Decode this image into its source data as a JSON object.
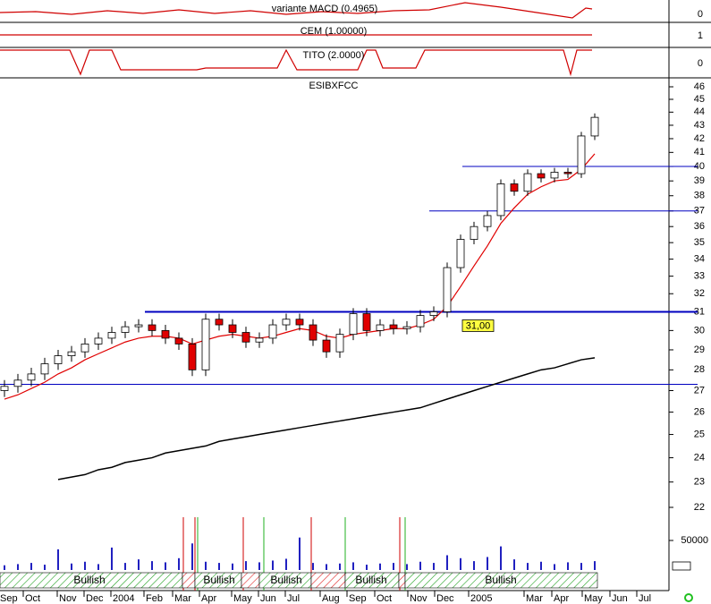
{
  "chart_data": {
    "type": "candlestick",
    "title": "ESIBXFCC",
    "indicators": [
      {
        "name": "variante MACD (0.4965)",
        "axis_label": "0"
      },
      {
        "name": "CEM (1.00000)",
        "axis_label": "1"
      },
      {
        "name": "TITO (2.0000)",
        "axis_label": "0"
      }
    ],
    "log_scale": true,
    "ylim": [
      22,
      46
    ],
    "yticks": [
      22,
      23,
      24,
      25,
      26,
      27,
      28,
      29,
      30,
      31,
      32,
      33,
      34,
      35,
      36,
      37,
      38,
      39,
      40,
      41,
      42,
      43,
      44,
      45,
      46
    ],
    "xtick_labels": [
      "Sep",
      "Oct",
      "Nov",
      "Dec",
      "2004",
      "Feb",
      "Mar",
      "Apr",
      "May",
      "Jun",
      "Jul",
      "Aug",
      "Sep",
      "Oct",
      "Nov",
      "Dec",
      "2005",
      "Mar",
      "Apr",
      "May",
      "Jun",
      "Jul"
    ],
    "open": [
      27.0,
      27.2,
      27.5,
      27.8,
      28.3,
      28.7,
      28.9,
      29.3,
      29.6,
      29.9,
      30.2,
      30.3,
      30.0,
      29.6,
      29.3,
      28.0,
      30.6,
      30.3,
      29.9,
      29.4,
      29.6,
      30.3,
      30.6,
      30.3,
      29.5,
      28.9,
      29.8,
      30.9,
      30.0,
      30.3,
      30.1,
      30.2,
      30.8,
      31.0,
      33.5,
      35.2,
      36.0,
      36.7,
      38.8,
      38.3,
      39.5,
      39.2,
      39.6,
      39.5,
      42.2
    ],
    "high": [
      27.5,
      27.8,
      28.1,
      28.6,
      29.0,
      29.2,
      29.6,
      29.9,
      30.2,
      30.5,
      30.6,
      30.6,
      30.3,
      29.9,
      29.6,
      30.9,
      30.9,
      30.6,
      30.2,
      29.9,
      30.6,
      30.9,
      30.9,
      30.6,
      29.8,
      30.1,
      31.2,
      31.2,
      30.6,
      30.6,
      30.5,
      31.1,
      31.3,
      33.8,
      35.5,
      36.3,
      37.0,
      39.1,
      39.1,
      39.8,
      39.8,
      39.9,
      39.9,
      42.5,
      43.9
    ],
    "low": [
      26.7,
      26.9,
      27.2,
      27.5,
      28.0,
      28.4,
      28.6,
      29.0,
      29.3,
      29.6,
      29.9,
      29.7,
      29.3,
      29.0,
      27.7,
      27.7,
      30.0,
      29.6,
      29.1,
      29.1,
      29.3,
      30.0,
      30.0,
      29.2,
      28.6,
      28.6,
      29.5,
      29.7,
      29.7,
      29.8,
      29.8,
      29.9,
      30.5,
      30.7,
      33.2,
      34.9,
      35.7,
      36.4,
      38.0,
      38.0,
      38.9,
      38.9,
      39.2,
      39.2,
      41.9
    ],
    "close": [
      27.2,
      27.5,
      27.8,
      28.3,
      28.7,
      28.9,
      29.3,
      29.6,
      29.9,
      30.2,
      30.3,
      30.0,
      29.6,
      29.3,
      28.0,
      30.6,
      30.3,
      29.9,
      29.4,
      29.6,
      30.3,
      30.6,
      30.3,
      29.5,
      28.9,
      29.8,
      30.9,
      30.0,
      30.3,
      30.1,
      30.2,
      30.8,
      31.0,
      33.5,
      35.2,
      36.0,
      36.7,
      38.8,
      38.3,
      39.5,
      39.2,
      39.6,
      39.5,
      42.2,
      43.6
    ],
    "up_color": "#ffffff",
    "down_color": "#e00000",
    "moving_averages": [
      {
        "color": "#e00000",
        "values": [
          26.6,
          26.8,
          27.1,
          27.4,
          27.8,
          28.1,
          28.5,
          28.8,
          29.1,
          29.4,
          29.6,
          29.7,
          29.7,
          29.6,
          29.3,
          29.5,
          29.7,
          29.8,
          29.7,
          29.6,
          29.7,
          29.9,
          30.1,
          30.0,
          29.7,
          29.6,
          29.8,
          29.9,
          30.0,
          30.1,
          30.1,
          30.3,
          30.6,
          31.3,
          32.4,
          33.6,
          34.8,
          36.2,
          37.2,
          38.1,
          38.6,
          39.0,
          39.1,
          39.8,
          40.9
        ]
      },
      {
        "color": "#000000",
        "values": [
          null,
          null,
          null,
          null,
          23.1,
          23.2,
          23.3,
          23.5,
          23.6,
          23.8,
          23.9,
          24.0,
          24.2,
          24.3,
          24.4,
          24.5,
          24.7,
          24.8,
          24.9,
          25.0,
          25.1,
          25.2,
          25.3,
          25.4,
          25.5,
          25.6,
          25.7,
          25.8,
          25.9,
          26.0,
          26.1,
          26.2,
          26.4,
          26.6,
          26.8,
          27.0,
          27.2,
          27.4,
          27.6,
          27.8,
          28.0,
          28.1,
          28.3,
          28.5,
          28.6
        ]
      }
    ],
    "levels": [
      31,
      27.3,
      37,
      40
    ],
    "level_color": "#0000c0",
    "level_label": "31,00",
    "volume": {
      "color": "#2020c0",
      "ylim": [
        0,
        50000
      ],
      "yticks": [
        50000
      ],
      "values": [
        8000,
        10000,
        12000,
        9000,
        35000,
        11000,
        14000,
        10000,
        38000,
        12000,
        18000,
        15000,
        13000,
        20000,
        45000,
        14000,
        12000,
        11000,
        15000,
        13000,
        16000,
        19000,
        55000,
        12000,
        10000,
        11000,
        13000,
        9000,
        11000,
        12000,
        10000,
        14000,
        12000,
        25000,
        20000,
        15000,
        22000,
        40000,
        18000,
        12000,
        14000,
        10000,
        13000,
        12000,
        15000
      ]
    },
    "regime_labels": [
      "Bullish",
      "Bullish",
      "Bullish",
      "Bullish",
      "Bullish"
    ]
  }
}
